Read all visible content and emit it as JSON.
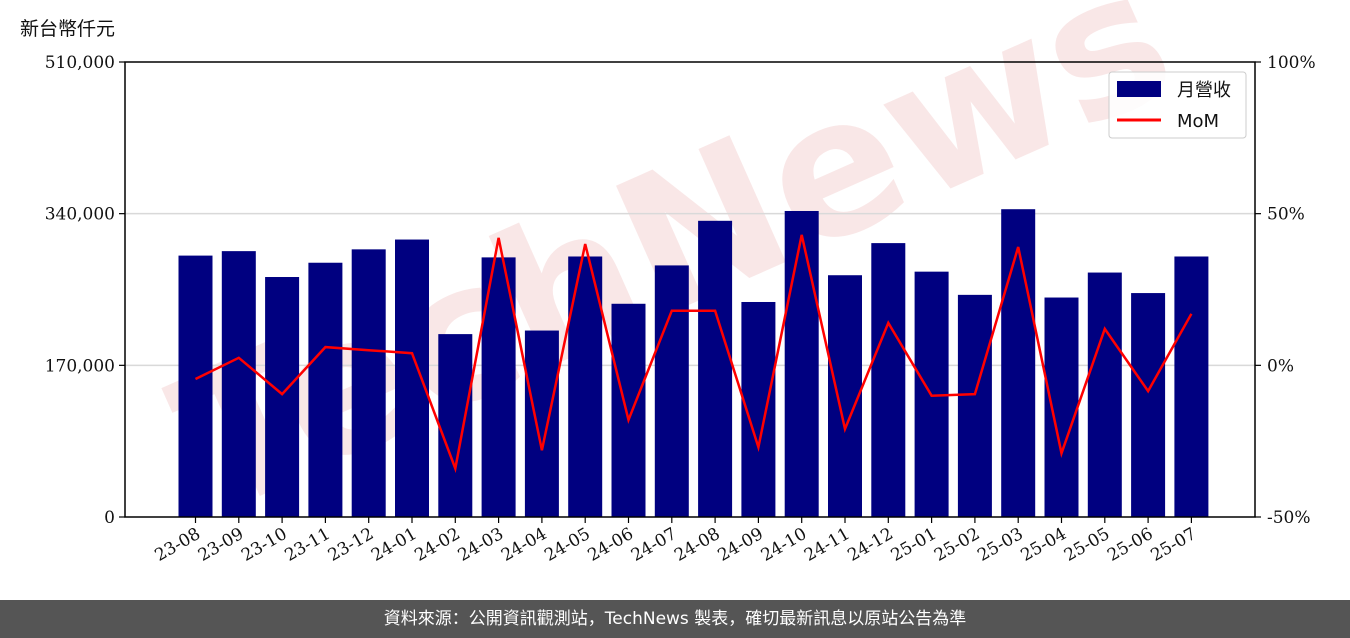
{
  "unit_label": "新台幣仟元",
  "footer_text": "資料來源：公開資訊觀測站，TechNews 製表，確切最新訊息以原站公告為準",
  "watermark_text": "TechNews",
  "colors": {
    "bar": "#000080",
    "line": "#ff0000",
    "grid": "#d9d9d9",
    "footer_bg": "#555555",
    "watermark": "#f2c9c9"
  },
  "chart_data": {
    "type": "bar",
    "categories": [
      "23-08",
      "23-09",
      "23-10",
      "23-11",
      "23-12",
      "24-01",
      "24-02",
      "24-03",
      "24-04",
      "24-05",
      "24-06",
      "24-07",
      "24-08",
      "24-09",
      "24-10",
      "24-11",
      "24-12",
      "25-01",
      "25-02",
      "25-03",
      "25-04",
      "25-05",
      "25-06",
      "25-07"
    ],
    "series": [
      {
        "name": "月營收",
        "type": "bar",
        "axis": "left",
        "values": [
          293000,
          298000,
          269000,
          285000,
          300000,
          311000,
          205000,
          291000,
          209000,
          292000,
          239000,
          282000,
          332000,
          241000,
          343000,
          271000,
          307000,
          275000,
          249000,
          345000,
          246000,
          274000,
          251000,
          292000
        ]
      },
      {
        "name": "MoM",
        "type": "line",
        "axis": "right",
        "values": [
          -4.5,
          2.5,
          -9.5,
          6,
          5,
          4,
          -34,
          42,
          -28,
          40,
          -18,
          18,
          18,
          -27,
          43,
          -21,
          14,
          -10,
          -9.5,
          39,
          -29,
          12,
          -8.5,
          17
        ]
      }
    ],
    "left_axis": {
      "ylim": [
        0,
        510000
      ],
      "ticks": [
        "0",
        "170,000",
        "340,000",
        "510,000"
      ],
      "tick_values": [
        0,
        170000,
        340000,
        510000
      ]
    },
    "right_axis": {
      "ylim": [
        -50,
        100
      ],
      "ticks": [
        "-50%",
        "0%",
        "50%",
        "100%"
      ],
      "tick_values": [
        -50,
        0,
        50,
        100
      ]
    },
    "grid": "horizontal",
    "legend": {
      "position": "top-right",
      "entries": [
        "月營收",
        "MoM"
      ]
    }
  }
}
